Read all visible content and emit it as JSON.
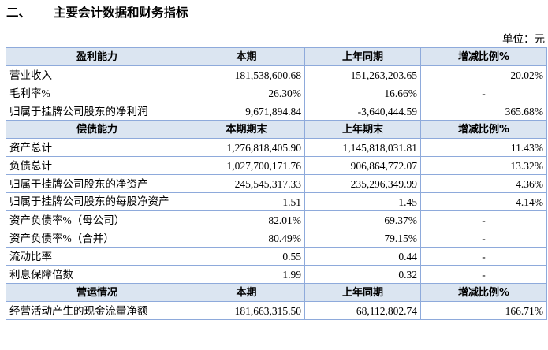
{
  "header": {
    "number": "二、",
    "title": "主要会计数据和财务指标",
    "unit": "单位：元"
  },
  "table": {
    "sections": [
      {
        "header": [
          "盈利能力",
          "本期",
          "上年同期",
          "增减比例%"
        ],
        "rows": [
          [
            "营业收入",
            "181,538,600.68",
            "151,263,203.65",
            "20.02%"
          ],
          [
            "毛利率%",
            "26.30%",
            "16.66%",
            "-"
          ],
          [
            "归属于挂牌公司股东的净利润",
            "9,671,894.84",
            "-3,640,444.59",
            "365.68%"
          ]
        ]
      },
      {
        "header": [
          "偿债能力",
          "本期期末",
          "上年期末",
          "增减比例%"
        ],
        "rows": [
          [
            "资产总计",
            "1,276,818,405.90",
            "1,145,818,031.81",
            "11.43%"
          ],
          [
            "负债总计",
            "1,027,700,171.76",
            "906,864,772.07",
            "13.32%"
          ],
          [
            "归属于挂牌公司股东的净资产",
            "245,545,317.33",
            "235,296,349.99",
            "4.36%"
          ],
          [
            "归属于挂牌公司股东的每股净资产",
            "1.51",
            "1.45",
            "4.14%"
          ],
          [
            "资产负债率%（母公司）",
            "82.01%",
            "69.37%",
            "-"
          ],
          [
            "资产负债率%（合并）",
            "80.49%",
            "79.15%",
            "-"
          ],
          [
            "流动比率",
            "0.55",
            "0.44",
            "-"
          ],
          [
            "利息保障倍数",
            "1.99",
            "0.32",
            "-"
          ]
        ]
      },
      {
        "header": [
          "营运情况",
          "本期",
          "上年同期",
          "增减比例%"
        ],
        "rows": [
          [
            "经营活动产生的现金流量净额",
            "181,663,315.50",
            "68,112,802.74",
            "166.71%"
          ]
        ]
      }
    ]
  }
}
